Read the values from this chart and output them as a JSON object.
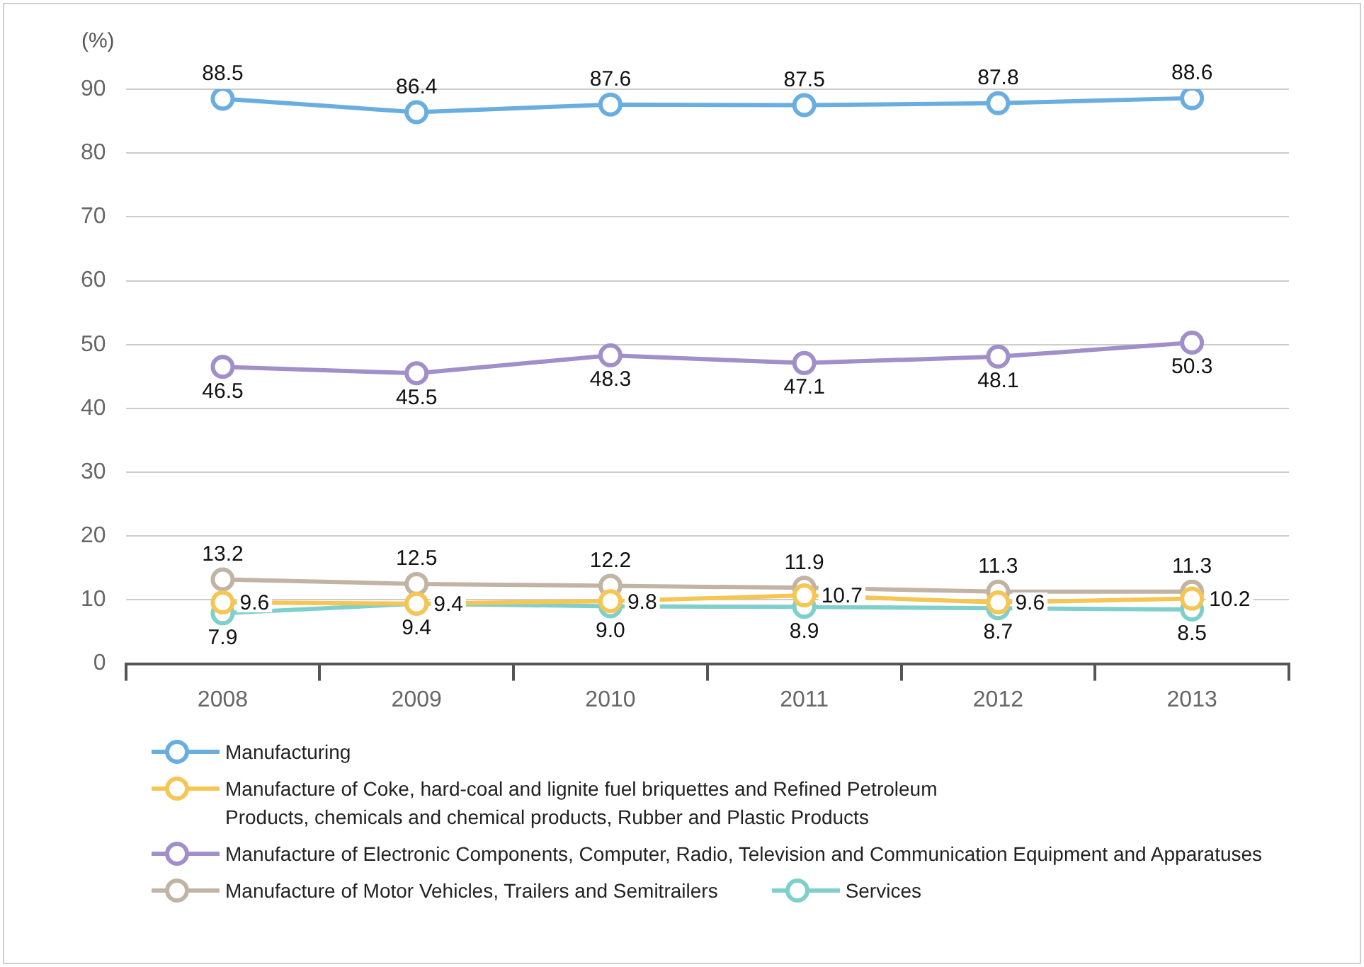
{
  "chart_data": {
    "type": "line",
    "ylabel": "(%)",
    "categories": [
      "2008",
      "2009",
      "2010",
      "2011",
      "2012",
      "2013"
    ],
    "ylim": [
      0,
      90
    ],
    "yticks": [
      0,
      10,
      20,
      30,
      40,
      50,
      60,
      70,
      80,
      90
    ],
    "grid": "y",
    "legend": "bottom",
    "marker": "circle",
    "series": [
      {
        "name": "Manufacturing",
        "color": "#6aaee0",
        "values": [
          88.5,
          86.4,
          87.6,
          87.5,
          87.8,
          88.6
        ],
        "value_labels": [
          "88.5",
          "86.4",
          "87.6",
          "87.5",
          "87.8",
          "88.6"
        ]
      },
      {
        "name": "Manufacture of Coke, hard-coal and lignite fuel briquettes and Refined Petroleum Products, chemicals and chemical products, Rubber and Plastic Products",
        "color": "#f5c654",
        "values": [
          9.6,
          9.4,
          9.8,
          10.7,
          9.6,
          10.2
        ],
        "value_labels": [
          "9.6",
          "9.4",
          "9.8",
          "10.7",
          "9.6",
          "10.2"
        ]
      },
      {
        "name": "Manufacture of Electronic Components, Computer, Radio, Television and Communication Equipment and Apparatuses",
        "color": "#a08fc9",
        "values": [
          46.5,
          45.5,
          48.3,
          47.1,
          48.1,
          50.3
        ],
        "value_labels": [
          "46.5",
          "45.5",
          "48.3",
          "47.1",
          "48.1",
          "50.3"
        ]
      },
      {
        "name": "Manufacture of Motor Vehicles, Trailers and Semitrailers",
        "color": "#c2b4a4",
        "values": [
          13.2,
          12.5,
          12.2,
          11.9,
          11.3,
          11.3
        ],
        "value_labels": [
          "13.2",
          "12.5",
          "12.2",
          "11.9",
          "11.3",
          "11.3"
        ]
      },
      {
        "name": "Services",
        "color": "#7fcfcc",
        "values": [
          7.9,
          9.4,
          9.0,
          8.9,
          8.7,
          8.5
        ],
        "value_labels": [
          "7.9",
          "9.4",
          "9.0",
          "8.9",
          "8.7",
          "8.5"
        ]
      }
    ]
  }
}
